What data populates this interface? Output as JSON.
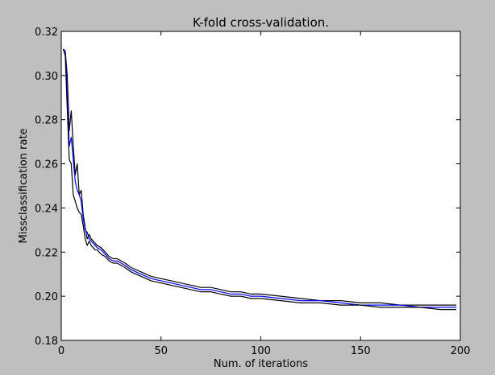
{
  "chart_data": {
    "type": "line",
    "title": "K-fold cross-validation.",
    "xlabel": "Num. of iterations",
    "ylabel": "Missclassification rate",
    "xlim": [
      0,
      200
    ],
    "ylim": [
      0.18,
      0.32
    ],
    "xticks": [
      0,
      50,
      100,
      150,
      200
    ],
    "xtick_labels": [
      "0",
      "50",
      "100",
      "150",
      "200"
    ],
    "yticks": [
      0.18,
      0.2,
      0.22,
      0.24,
      0.26,
      0.28,
      0.3,
      0.32
    ],
    "ytick_labels": [
      "0.18",
      "0.20",
      "0.22",
      "0.24",
      "0.26",
      "0.28",
      "0.30",
      "0.32"
    ],
    "grid": false,
    "series": [
      {
        "color": "#000000",
        "x": [
          1,
          2,
          3,
          4,
          5,
          6,
          7,
          8,
          9,
          10,
          11,
          12,
          13,
          14,
          15,
          16,
          17,
          18,
          20,
          22,
          24,
          26,
          28,
          30,
          32,
          35,
          40,
          45,
          50,
          55,
          60,
          65,
          70,
          75,
          80,
          85,
          90,
          95,
          100,
          110,
          120,
          130,
          140,
          150,
          160,
          170,
          180,
          190,
          198
        ],
        "values": [
          0.312,
          0.311,
          0.3,
          0.275,
          0.284,
          0.268,
          0.255,
          0.26,
          0.246,
          0.248,
          0.237,
          0.231,
          0.226,
          0.228,
          0.226,
          0.225,
          0.224,
          0.223,
          0.222,
          0.22,
          0.218,
          0.217,
          0.217,
          0.216,
          0.215,
          0.213,
          0.211,
          0.209,
          0.208,
          0.207,
          0.206,
          0.205,
          0.204,
          0.204,
          0.203,
          0.202,
          0.202,
          0.201,
          0.201,
          0.2,
          0.199,
          0.198,
          0.198,
          0.197,
          0.197,
          0.196,
          0.196,
          0.196,
          0.196
        ]
      },
      {
        "color": "#0000ff",
        "x": [
          1,
          2,
          3,
          4,
          5,
          6,
          7,
          8,
          9,
          10,
          11,
          12,
          13,
          14,
          15,
          16,
          17,
          18,
          20,
          22,
          24,
          26,
          28,
          30,
          32,
          35,
          40,
          45,
          50,
          55,
          60,
          65,
          70,
          75,
          80,
          85,
          90,
          95,
          100,
          110,
          120,
          130,
          140,
          150,
          160,
          170,
          180,
          190,
          198
        ],
        "values": [
          0.312,
          0.311,
          0.295,
          0.268,
          0.272,
          0.262,
          0.252,
          0.248,
          0.246,
          0.243,
          0.235,
          0.23,
          0.229,
          0.226,
          0.225,
          0.224,
          0.223,
          0.222,
          0.221,
          0.219,
          0.217,
          0.216,
          0.216,
          0.215,
          0.214,
          0.212,
          0.21,
          0.208,
          0.207,
          0.206,
          0.205,
          0.204,
          0.203,
          0.203,
          0.202,
          0.201,
          0.201,
          0.2,
          0.2,
          0.199,
          0.198,
          0.198,
          0.197,
          0.196,
          0.196,
          0.196,
          0.195,
          0.195,
          0.195
        ]
      },
      {
        "color": "#000000",
        "x": [
          1,
          2,
          3,
          4,
          5,
          6,
          7,
          8,
          9,
          10,
          11,
          12,
          13,
          14,
          15,
          16,
          17,
          18,
          20,
          22,
          24,
          26,
          28,
          30,
          32,
          35,
          40,
          45,
          50,
          55,
          60,
          65,
          70,
          75,
          80,
          85,
          90,
          95,
          100,
          110,
          120,
          130,
          140,
          150,
          160,
          170,
          180,
          190,
          198
        ],
        "values": [
          0.312,
          0.309,
          0.285,
          0.262,
          0.26,
          0.246,
          0.243,
          0.24,
          0.238,
          0.237,
          0.232,
          0.226,
          0.223,
          0.225,
          0.223,
          0.222,
          0.221,
          0.221,
          0.219,
          0.218,
          0.216,
          0.215,
          0.215,
          0.214,
          0.213,
          0.211,
          0.209,
          0.207,
          0.206,
          0.205,
          0.204,
          0.203,
          0.202,
          0.202,
          0.201,
          0.2,
          0.2,
          0.199,
          0.199,
          0.198,
          0.197,
          0.197,
          0.196,
          0.196,
          0.195,
          0.195,
          0.195,
          0.194,
          0.194
        ]
      }
    ]
  }
}
